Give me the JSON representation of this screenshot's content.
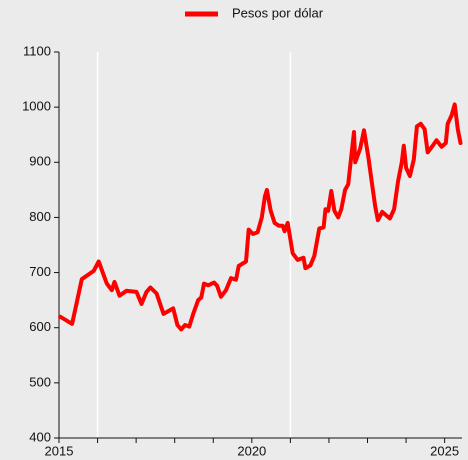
{
  "chart_data": {
    "type": "line",
    "x": [
      2015.03,
      2015.34,
      2015.59,
      2015.9,
      2016.03,
      2016.24,
      2016.37,
      2016.44,
      2016.57,
      2016.75,
      2017.01,
      2017.14,
      2017.27,
      2017.37,
      2017.53,
      2017.71,
      2017.96,
      2018.07,
      2018.17,
      2018.27,
      2018.38,
      2018.48,
      2018.61,
      2018.69,
      2018.76,
      2018.87,
      2019.02,
      2019.1,
      2019.2,
      2019.33,
      2019.46,
      2019.59,
      2019.66,
      2019.85,
      2019.92,
      2020.03,
      2020.15,
      2020.26,
      2020.34,
      2020.39,
      2020.49,
      2020.59,
      2020.7,
      2020.8,
      2020.85,
      2020.93,
      2021.06,
      2021.19,
      2021.34,
      2021.39,
      2021.52,
      2021.62,
      2021.75,
      2021.86,
      2021.91,
      2021.98,
      2022.06,
      2022.14,
      2022.24,
      2022.32,
      2022.42,
      2022.5,
      2022.65,
      2022.68,
      2022.81,
      2022.91,
      2023.02,
      2023.12,
      2023.2,
      2023.27,
      2023.38,
      2023.58,
      2023.69,
      2023.79,
      2023.89,
      2023.94,
      2024,
      2024.1,
      2024.2,
      2024.28,
      2024.38,
      2024.48,
      2024.56,
      2024.69,
      2024.79,
      2024.92,
      2025.03,
      2025.08,
      2025.18,
      2025.26,
      2025.34,
      2025.41
    ],
    "series": [
      {
        "name": "Pesos por dólar",
        "color": "#ff0000",
        "values": [
          620,
          607,
          688,
          703,
          720,
          680,
          668,
          683,
          658,
          667,
          665,
          643,
          665,
          673,
          662,
          625,
          635,
          605,
          597,
          605,
          602,
          625,
          650,
          655,
          680,
          677,
          682,
          676,
          656,
          668,
          690,
          687,
          712,
          720,
          778,
          770,
          773,
          800,
          838,
          850,
          812,
          790,
          785,
          785,
          775,
          790,
          735,
          723,
          727,
          708,
          713,
          730,
          780,
          782,
          815,
          812,
          848,
          812,
          800,
          815,
          850,
          860,
          955,
          900,
          925,
          958,
          910,
          860,
          820,
          795,
          810,
          798,
          815,
          865,
          900,
          930,
          890,
          875,
          905,
          965,
          970,
          960,
          918,
          930,
          940,
          928,
          935,
          970,
          985,
          1005,
          960,
          935
        ]
      }
    ],
    "xlim": [
      2015,
      2025.45
    ],
    "xticks": [
      2015,
      2020,
      2025
    ],
    "xminorticks": [
      2016,
      2017,
      2018,
      2019,
      2021,
      2022,
      2023,
      2024
    ],
    "xgrid": [
      2016,
      2021
    ],
    "ylim": [
      400,
      1100
    ],
    "yticks": [
      400,
      500,
      600,
      700,
      800,
      900,
      1000,
      1100
    ],
    "legend": "top"
  }
}
